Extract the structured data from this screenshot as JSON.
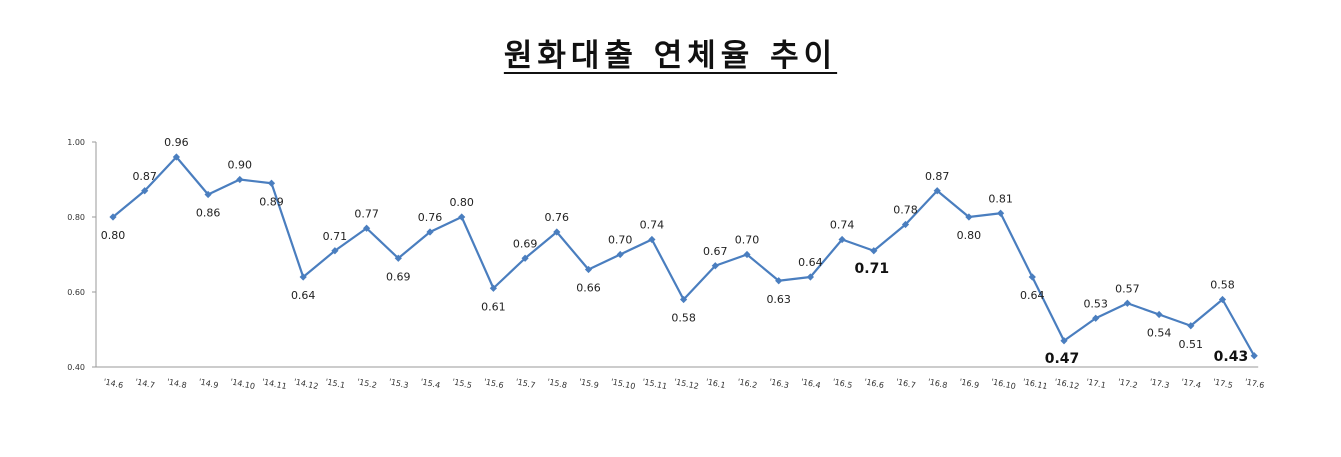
{
  "title": "원화대출 연체율 추이",
  "chart_data": {
    "type": "line",
    "title": "원화대출 연체율 추이",
    "xlabel": "",
    "ylabel": "",
    "ylim": [
      0.4,
      1.0
    ],
    "yticks": [
      "0.40",
      "0.60",
      "0.80",
      "1.00"
    ],
    "grid": false,
    "color": "#4a7ebf",
    "categories": [
      "'14.6",
      "'14.7",
      "'14.8",
      "'14.9",
      "'14.10",
      "'14.11",
      "'14.12",
      "'15.1",
      "'15.2",
      "'15.3",
      "'15.4",
      "'15.5",
      "'15.6",
      "'15.7",
      "'15.8",
      "'15.9",
      "'15.10",
      "'15.11",
      "'15.12",
      "'16.1",
      "'16.2",
      "'16.3",
      "'16.4",
      "'16.5",
      "'16.6",
      "'16.7",
      "'16.8",
      "'16.9",
      "'16.10",
      "'16.11",
      "'16.12",
      "'17.1",
      "'17.2",
      "'17.3",
      "'17.4",
      "'17.5",
      "'17.6"
    ],
    "values": [
      0.8,
      0.87,
      0.96,
      0.86,
      0.9,
      0.89,
      0.64,
      0.71,
      0.77,
      0.69,
      0.76,
      0.8,
      0.61,
      0.69,
      0.76,
      0.66,
      0.7,
      0.74,
      0.58,
      0.67,
      0.7,
      0.63,
      0.64,
      0.74,
      0.71,
      0.78,
      0.87,
      0.8,
      0.81,
      0.64,
      0.47,
      0.53,
      0.57,
      0.54,
      0.51,
      0.58,
      0.43
    ],
    "labels": [
      "0.80",
      "0.87",
      "0.96",
      "0.86",
      "0.90",
      "0.89",
      "0.64",
      "0.71",
      "0.77",
      "0.69",
      "0.76",
      "0.80",
      "0.61",
      "0.69",
      "0.76",
      "0.66",
      "0.70",
      "0.74",
      "0.58",
      "0.67",
      "0.70",
      "0.63",
      "0.64",
      "0.74",
      "0.71",
      "0.78",
      "0.87",
      "0.80",
      "0.81",
      "0.64",
      "0.47",
      "0.53",
      "0.57",
      "0.54",
      "0.51",
      "0.58",
      "0.43"
    ],
    "emphasized_labels": [
      "'16.6",
      "'16.12",
      "'17.6"
    ]
  }
}
